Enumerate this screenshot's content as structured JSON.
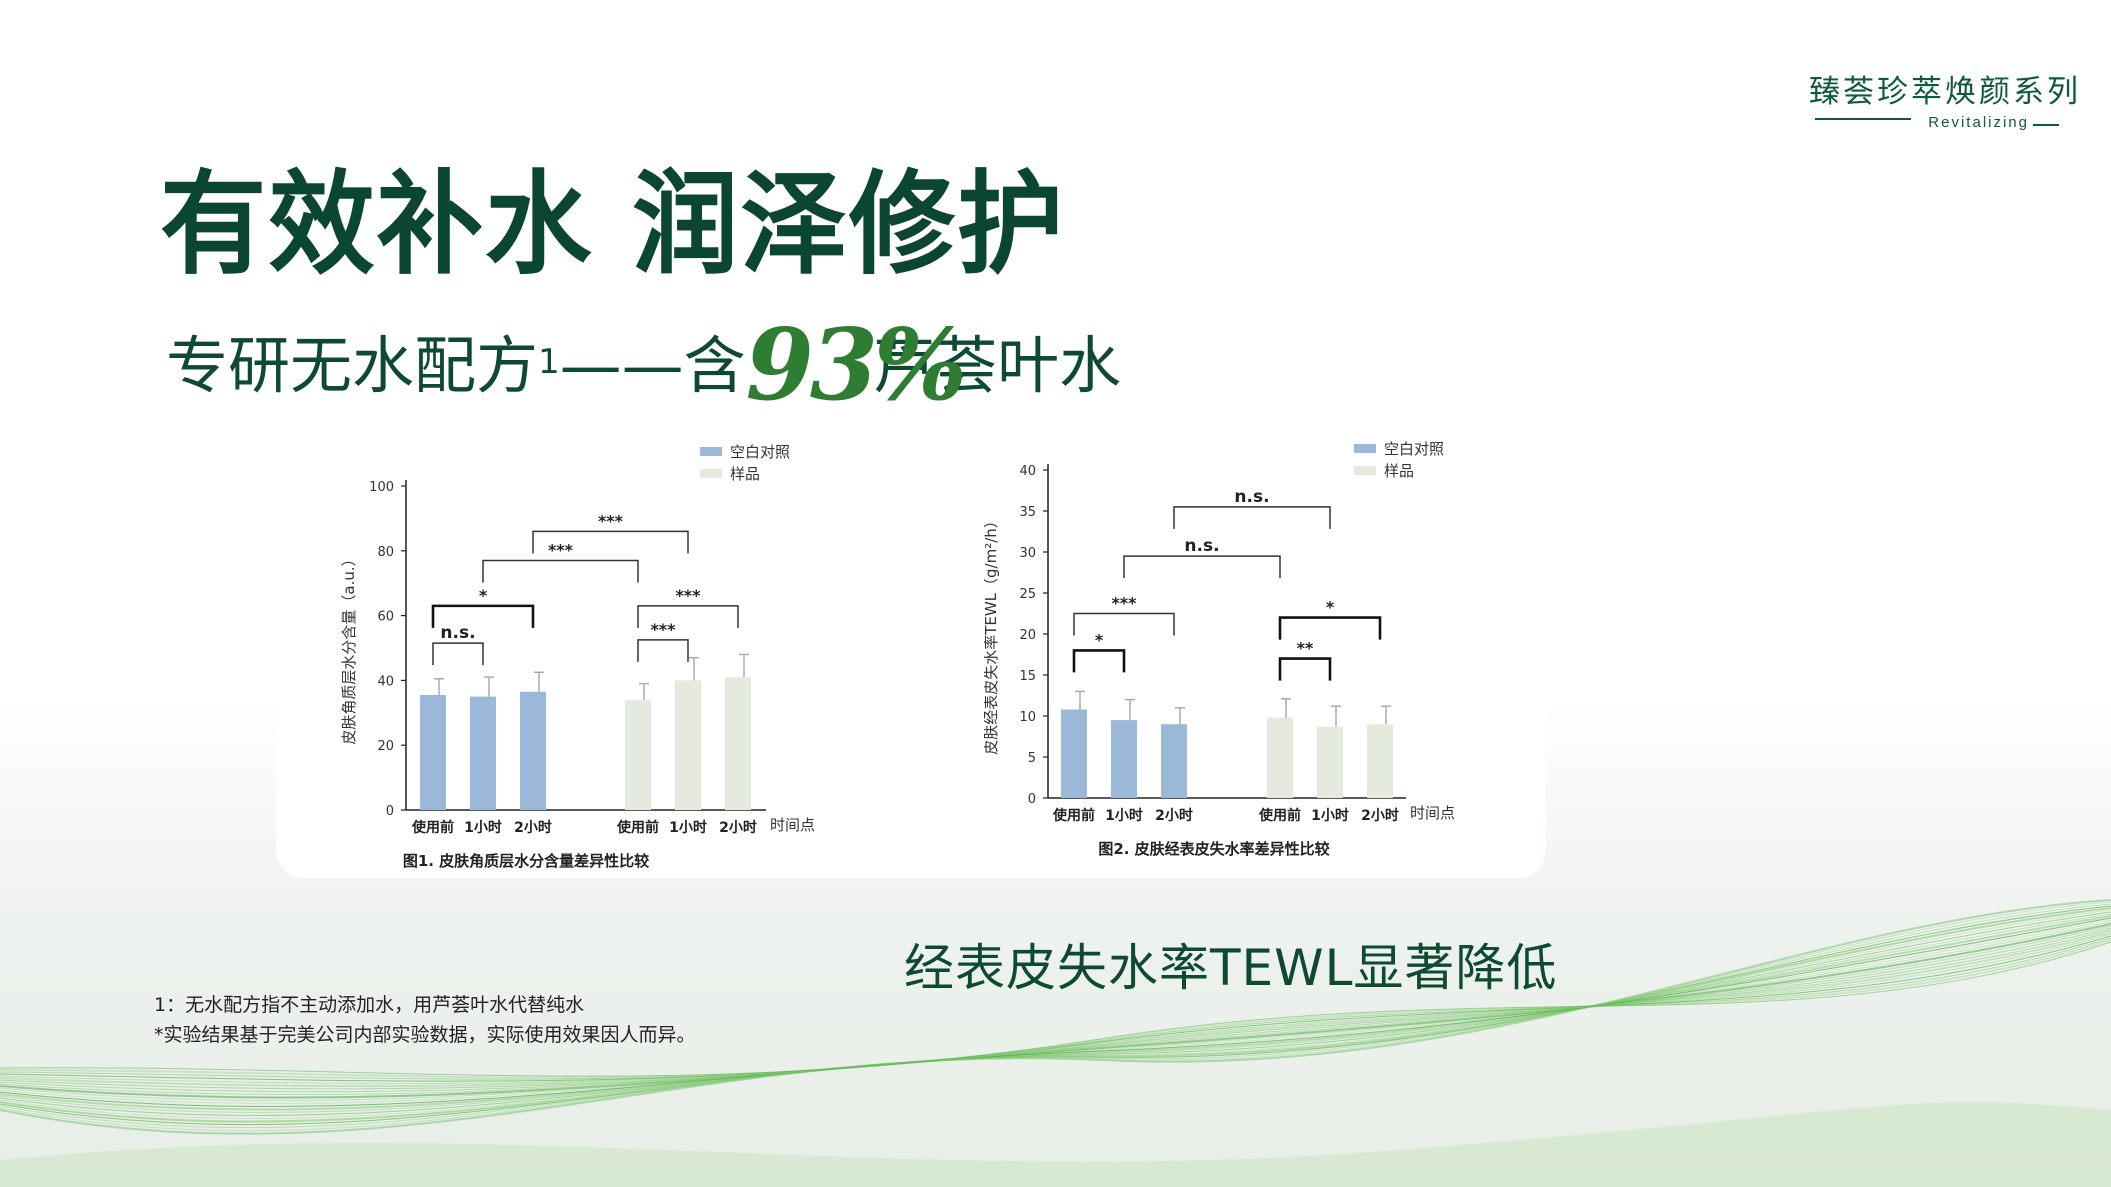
{
  "brand": {
    "cn": "臻荟珍萃焕颜系列",
    "en": "Revitalizing"
  },
  "title": "有效补水  润泽修护",
  "subtitle": {
    "prefix": "专研无水配方",
    "sup": "1",
    "dash": "——含",
    "percent": "93%",
    "suffix": "芦荟叶水"
  },
  "tewl_claim": "经表皮失水率TEWL显著降低",
  "footnotes": [
    "1：无水配方指不主动添加水，用芦荟叶水代替纯水",
    "*实验结果基于完美公司内部实验数据，实际使用效果因人而异。"
  ],
  "colors": {
    "control": "#9cb8d9",
    "sample": "#e5eade",
    "title_green": "#0b4630",
    "accent_green": "#2e7d32"
  },
  "chart_data": [
    {
      "type": "bar",
      "caption": "图1. 皮肤角质层水分含量差异性比较",
      "ylabel": "皮肤角质层水分含量（a.u.）",
      "xlabel": "时间点",
      "ylim": [
        0,
        100
      ],
      "yticks": [
        0,
        20,
        40,
        60,
        80,
        100
      ],
      "categories": [
        "使用前",
        "1小时",
        "2小时"
      ],
      "legend": [
        "空白对照",
        "样品"
      ],
      "legend_position": "top-right",
      "series": [
        {
          "name": "空白对照",
          "values": [
            35.5,
            35,
            36.5
          ],
          "errors": [
            5,
            6,
            6
          ]
        },
        {
          "name": "样品",
          "values": [
            34,
            40,
            41
          ],
          "errors": [
            5,
            7,
            7
          ]
        }
      ],
      "significance": [
        {
          "from": [
            0,
            0
          ],
          "to": [
            0,
            1
          ],
          "label": "n.s.",
          "y": 51.5
        },
        {
          "from": [
            0,
            0
          ],
          "to": [
            0,
            2
          ],
          "label": "*",
          "y": 63
        },
        {
          "from": [
            1,
            0
          ],
          "to": [
            1,
            1
          ],
          "label": "***",
          "y": 52.5
        },
        {
          "from": [
            1,
            0
          ],
          "to": [
            1,
            2
          ],
          "label": "***",
          "y": 63
        },
        {
          "from": [
            0,
            1
          ],
          "to": [
            1,
            0
          ],
          "label": "***",
          "y": 77
        },
        {
          "from": [
            0,
            2
          ],
          "to": [
            1,
            1
          ],
          "label": "***",
          "y": 86
        }
      ]
    },
    {
      "type": "bar",
      "caption": "图2. 皮肤经表皮失水率差异性比较",
      "ylabel": "皮肤经表皮失水率TEWL（g/m²/h）",
      "xlabel": "时间点",
      "ylim": [
        0,
        40
      ],
      "yticks": [
        0,
        5,
        10,
        15,
        20,
        25,
        30,
        35,
        40
      ],
      "categories": [
        "使用前",
        "1小时",
        "2小时"
      ],
      "legend": [
        "空白对照",
        "样品"
      ],
      "legend_position": "top-right",
      "series": [
        {
          "name": "空白对照",
          "values": [
            10.8,
            9.5,
            9
          ],
          "errors": [
            2.2,
            2.5,
            2
          ]
        },
        {
          "name": "样品",
          "values": [
            9.8,
            8.7,
            9
          ],
          "errors": [
            2.3,
            2.5,
            2.2
          ]
        }
      ],
      "significance": [
        {
          "from": [
            0,
            0
          ],
          "to": [
            0,
            1
          ],
          "label": "*",
          "y": 18
        },
        {
          "from": [
            0,
            0
          ],
          "to": [
            0,
            2
          ],
          "label": "***",
          "y": 22.5
        },
        {
          "from": [
            1,
            0
          ],
          "to": [
            1,
            1
          ],
          "label": "**",
          "y": 17
        },
        {
          "from": [
            1,
            0
          ],
          "to": [
            1,
            2
          ],
          "label": "*",
          "y": 22
        },
        {
          "from": [
            0,
            1
          ],
          "to": [
            1,
            0
          ],
          "label": "n.s.",
          "y": 29.5
        },
        {
          "from": [
            0,
            2
          ],
          "to": [
            1,
            1
          ],
          "label": "n.s.",
          "y": 35.5
        }
      ]
    }
  ]
}
